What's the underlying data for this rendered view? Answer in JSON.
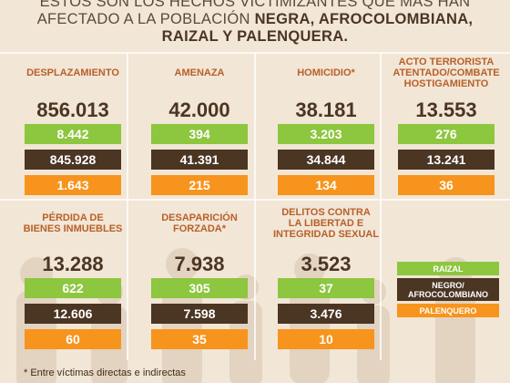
{
  "header": {
    "lines": [
      [
        {
          "text": "ESTOS SON LOS HECHOS VICTIMIZANTES QUE MÁS HAN",
          "bold": false
        }
      ],
      [
        {
          "text": "AFECTADO A LA POBLACIÓN ",
          "bold": false
        },
        {
          "text": "NEGRA, AFROCOLOMBIANA,",
          "bold": true
        }
      ],
      [
        {
          "text": "RAIZAL Y PALENQUERA.",
          "bold": true
        }
      ]
    ]
  },
  "cells": [
    {
      "title": [
        "DESPLAZAMIENTO"
      ],
      "total": "856.013",
      "raizal": "8.442",
      "negro": "845.928",
      "palenquero": "1.643"
    },
    {
      "title": [
        "AMENAZA"
      ],
      "total": "42.000",
      "raizal": "394",
      "negro": "41.391",
      "palenquero": "215"
    },
    {
      "title": [
        "HOMICIDIO*"
      ],
      "total": "38.181",
      "raizal": "3.203",
      "negro": "34.844",
      "palenquero": "134"
    },
    {
      "title": [
        "ACTO TERRORISTA",
        "ATENTADO/COMBATE",
        "HOSTIGAMIENTO"
      ],
      "total": "13.553",
      "raizal": "276",
      "negro": "13.241",
      "palenquero": "36"
    },
    {
      "title": [
        "PÉRDIDA DE",
        "BIENES INMUEBLES"
      ],
      "total": "13.288",
      "raizal": "622",
      "negro": "12.606",
      "palenquero": "60"
    },
    {
      "title": [
        "DESAPARICIÓN",
        "FORZADA*"
      ],
      "total": "7.938",
      "raizal": "305",
      "negro": "7.598",
      "palenquero": "35"
    },
    {
      "title": [
        "DELITOS CONTRA",
        "LA LIBERTAD E",
        "INTEGRIDAD SEXUAL"
      ],
      "total": "3.523",
      "raizal": "37",
      "negro": "3.476",
      "palenquero": "10"
    }
  ],
  "legend": {
    "raizal": [
      "RAIZAL"
    ],
    "negro": [
      "NEGRO/",
      "AFROCOLOMBIANO"
    ],
    "palenquero": [
      "PALENQUERO"
    ]
  },
  "colors": {
    "raizal": "#8dc63f",
    "negro": "#4b3523",
    "palenquero": "#f7941d"
  },
  "footnote": "* Entre víctimas directas e indirectas"
}
